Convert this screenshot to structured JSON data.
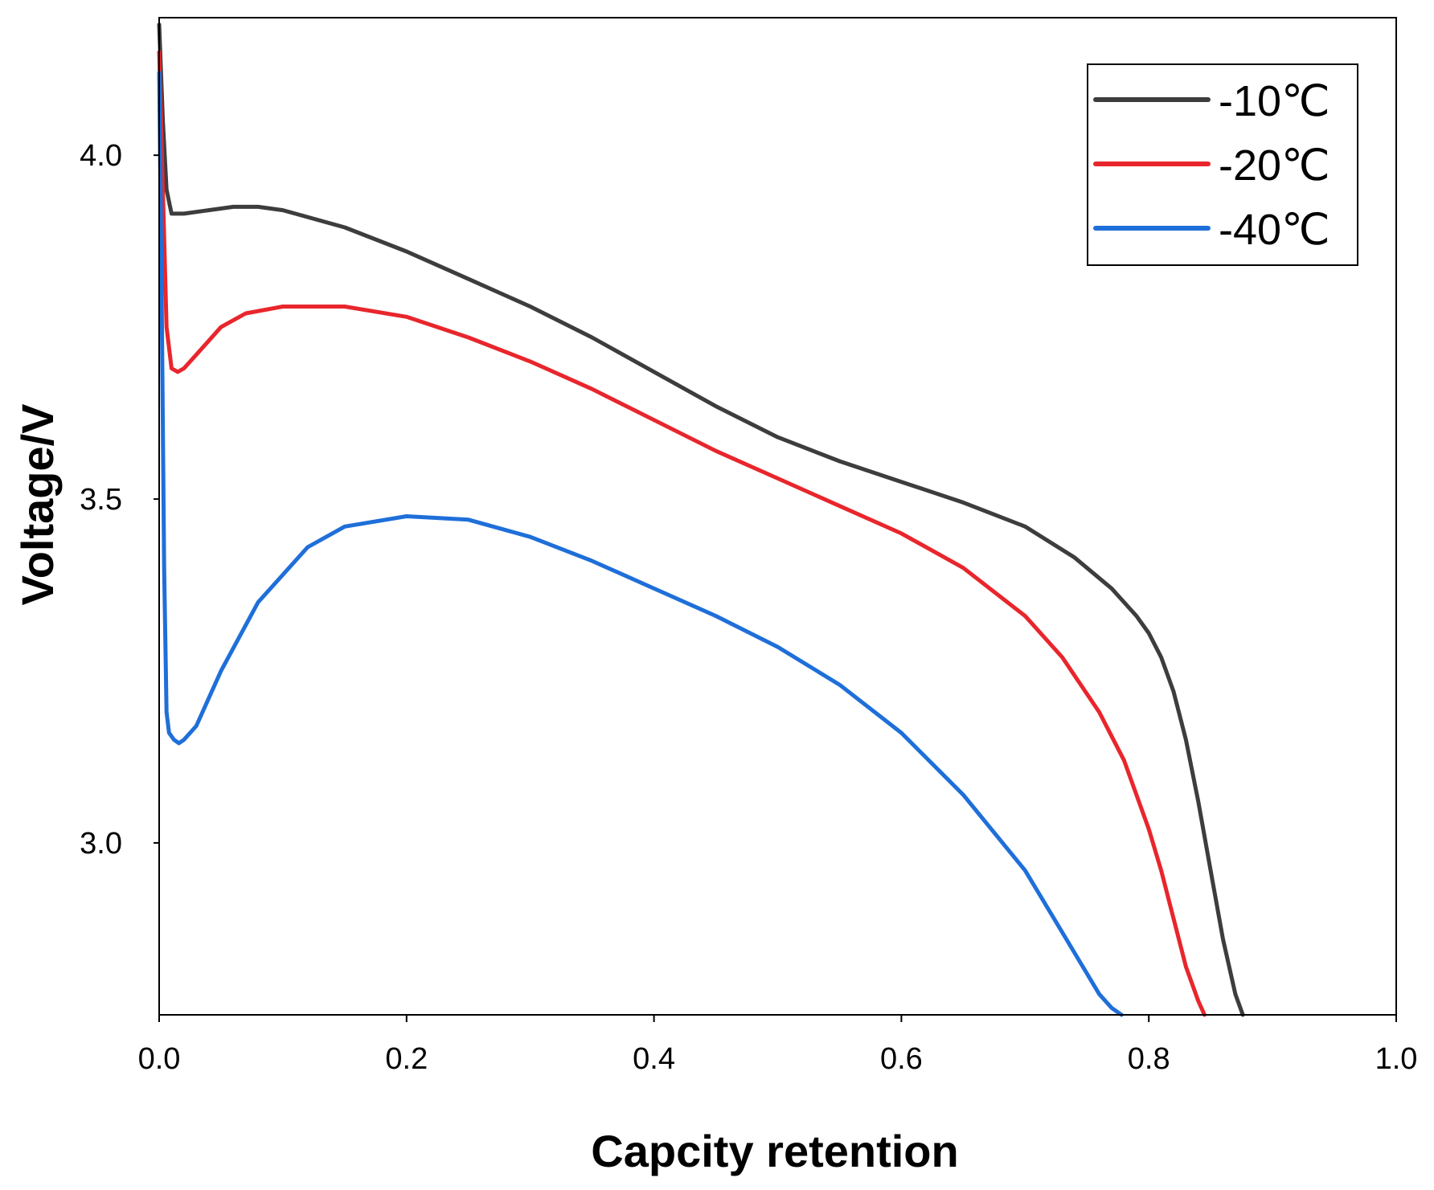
{
  "chart_data": {
    "type": "line",
    "title": "",
    "xlabel": "Capcity retention",
    "ylabel": "Voltage/V",
    "xlim": [
      0.0,
      1.0
    ],
    "ylim": [
      2.75,
      4.2
    ],
    "x_ticks": [
      0.0,
      0.2,
      0.4,
      0.6,
      0.8,
      1.0
    ],
    "x_tick_labels": [
      "0.0",
      "0.2",
      "0.4",
      "0.6",
      "0.8",
      "1.0"
    ],
    "y_ticks": [
      3.0,
      3.5,
      4.0
    ],
    "y_tick_labels": [
      "3.0",
      "3.5",
      "4.0"
    ],
    "grid": false,
    "legend_position": "top-right",
    "series": [
      {
        "name": "-10℃",
        "color": "#3d3d3d",
        "x": [
          0.0,
          0.003,
          0.006,
          0.01,
          0.02,
          0.04,
          0.06,
          0.08,
          0.1,
          0.15,
          0.2,
          0.25,
          0.3,
          0.35,
          0.4,
          0.45,
          0.5,
          0.55,
          0.6,
          0.65,
          0.7,
          0.74,
          0.77,
          0.79,
          0.8,
          0.81,
          0.82,
          0.83,
          0.84,
          0.85,
          0.86,
          0.87,
          0.876
        ],
        "y": [
          4.19,
          4.05,
          3.95,
          3.915,
          3.915,
          3.92,
          3.925,
          3.925,
          3.92,
          3.895,
          3.86,
          3.82,
          3.78,
          3.735,
          3.685,
          3.635,
          3.59,
          3.555,
          3.525,
          3.495,
          3.46,
          3.415,
          3.37,
          3.33,
          3.305,
          3.27,
          3.22,
          3.15,
          3.06,
          2.96,
          2.86,
          2.78,
          2.75
        ]
      },
      {
        "name": "-20℃",
        "color": "#e8262c",
        "x": [
          0.0,
          0.003,
          0.006,
          0.01,
          0.015,
          0.02,
          0.03,
          0.05,
          0.07,
          0.1,
          0.13,
          0.15,
          0.2,
          0.25,
          0.3,
          0.35,
          0.4,
          0.45,
          0.5,
          0.55,
          0.6,
          0.65,
          0.7,
          0.73,
          0.76,
          0.78,
          0.8,
          0.81,
          0.82,
          0.83,
          0.84,
          0.845
        ],
        "y": [
          4.15,
          3.95,
          3.75,
          3.69,
          3.685,
          3.69,
          3.71,
          3.75,
          3.77,
          3.78,
          3.78,
          3.78,
          3.765,
          3.735,
          3.7,
          3.66,
          3.615,
          3.57,
          3.53,
          3.49,
          3.45,
          3.4,
          3.33,
          3.27,
          3.19,
          3.12,
          3.02,
          2.96,
          2.89,
          2.82,
          2.77,
          2.75
        ]
      },
      {
        "name": "-40℃",
        "color": "#1f6fd9",
        "x": [
          0.0,
          0.002,
          0.004,
          0.006,
          0.008,
          0.012,
          0.016,
          0.02,
          0.03,
          0.05,
          0.08,
          0.12,
          0.15,
          0.2,
          0.25,
          0.3,
          0.35,
          0.4,
          0.45,
          0.5,
          0.55,
          0.6,
          0.65,
          0.7,
          0.72,
          0.74,
          0.76,
          0.77,
          0.778
        ],
        "y": [
          4.12,
          3.8,
          3.4,
          3.19,
          3.16,
          3.15,
          3.145,
          3.15,
          3.17,
          3.25,
          3.35,
          3.43,
          3.46,
          3.475,
          3.47,
          3.445,
          3.41,
          3.37,
          3.33,
          3.285,
          3.23,
          3.16,
          3.07,
          2.96,
          2.9,
          2.84,
          2.78,
          2.76,
          2.75
        ]
      }
    ]
  }
}
